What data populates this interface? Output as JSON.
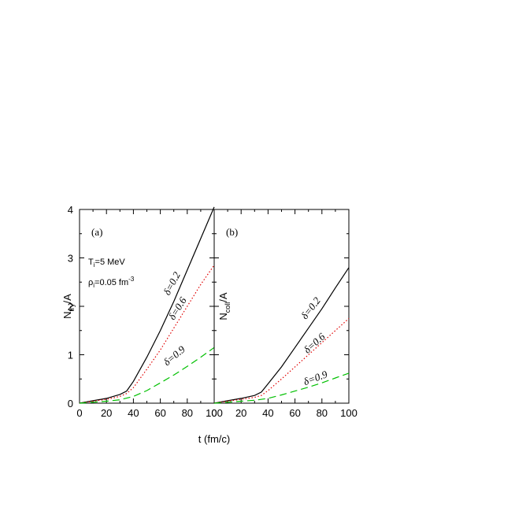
{
  "chart_data": [
    {
      "type": "line",
      "panel_label": "(a)",
      "ylabel": {
        "main": "N",
        "sub": "try",
        "tail": "/A"
      },
      "xlabel": "t (fm/c)",
      "xlim": [
        0,
        100
      ],
      "ylim": [
        0,
        4
      ],
      "xticks": [
        "0",
        "20",
        "40",
        "60",
        "80",
        "100"
      ],
      "yticks": [
        "0",
        "1",
        "2",
        "3",
        "4"
      ],
      "annotations": {
        "temperature": {
          "main": "T",
          "sub": "i",
          "tail": "=5 MeV"
        },
        "density": {
          "main": "ρ",
          "sub": "i",
          "tail": "=0.05 fm",
          "sup": "-3"
        }
      },
      "series": [
        {
          "label": "δ=0.2",
          "line_color": "#000000",
          "style": "solid",
          "x": [
            0,
            10,
            20,
            30,
            35,
            40,
            50,
            60,
            70,
            80,
            90,
            100
          ],
          "y": [
            0,
            0.05,
            0.1,
            0.18,
            0.25,
            0.45,
            0.95,
            1.5,
            2.1,
            2.75,
            3.4,
            4.05
          ]
        },
        {
          "label": "δ=0.6",
          "line_color": "#e00000",
          "style": "dotted",
          "x": [
            0,
            10,
            20,
            30,
            35,
            40,
            50,
            60,
            70,
            80,
            90,
            100
          ],
          "y": [
            0,
            0.04,
            0.08,
            0.14,
            0.2,
            0.32,
            0.7,
            1.1,
            1.55,
            2.0,
            2.45,
            2.85
          ]
        },
        {
          "label": "δ=0.9",
          "line_color": "#00c000",
          "style": "dashed",
          "x": [
            0,
            10,
            20,
            30,
            40,
            50,
            60,
            70,
            80,
            90,
            100
          ],
          "y": [
            0,
            0.02,
            0.04,
            0.07,
            0.14,
            0.26,
            0.42,
            0.58,
            0.76,
            0.95,
            1.15
          ]
        }
      ]
    },
    {
      "type": "line",
      "panel_label": "(b)",
      "ylabel": {
        "main": "N",
        "sub": "coll",
        "tail": "/A"
      },
      "xlabel": "t (fm/c)",
      "xlim": [
        0,
        100
      ],
      "ylim": [
        0,
        4
      ],
      "xticks": [
        "0",
        "20",
        "40",
        "60",
        "80",
        "100"
      ],
      "yticks": [],
      "series": [
        {
          "label": "δ=0.2",
          "line_color": "#000000",
          "style": "solid",
          "x": [
            0,
            10,
            20,
            30,
            35,
            40,
            50,
            60,
            70,
            80,
            90,
            100
          ],
          "y": [
            0,
            0.05,
            0.1,
            0.16,
            0.23,
            0.4,
            0.75,
            1.15,
            1.55,
            1.95,
            2.38,
            2.8
          ]
        },
        {
          "label": "δ=0.6",
          "line_color": "#e00000",
          "style": "dotted",
          "x": [
            0,
            10,
            20,
            30,
            35,
            40,
            50,
            60,
            70,
            80,
            90,
            100
          ],
          "y": [
            0,
            0.04,
            0.08,
            0.12,
            0.16,
            0.26,
            0.5,
            0.75,
            1.0,
            1.25,
            1.5,
            1.75
          ]
        },
        {
          "label": "δ=0.9",
          "line_color": "#00c000",
          "style": "dashed",
          "x": [
            0,
            10,
            20,
            30,
            40,
            50,
            60,
            70,
            80,
            90,
            100
          ],
          "y": [
            0,
            0.02,
            0.04,
            0.06,
            0.1,
            0.17,
            0.25,
            0.33,
            0.42,
            0.52,
            0.62
          ]
        }
      ]
    }
  ]
}
